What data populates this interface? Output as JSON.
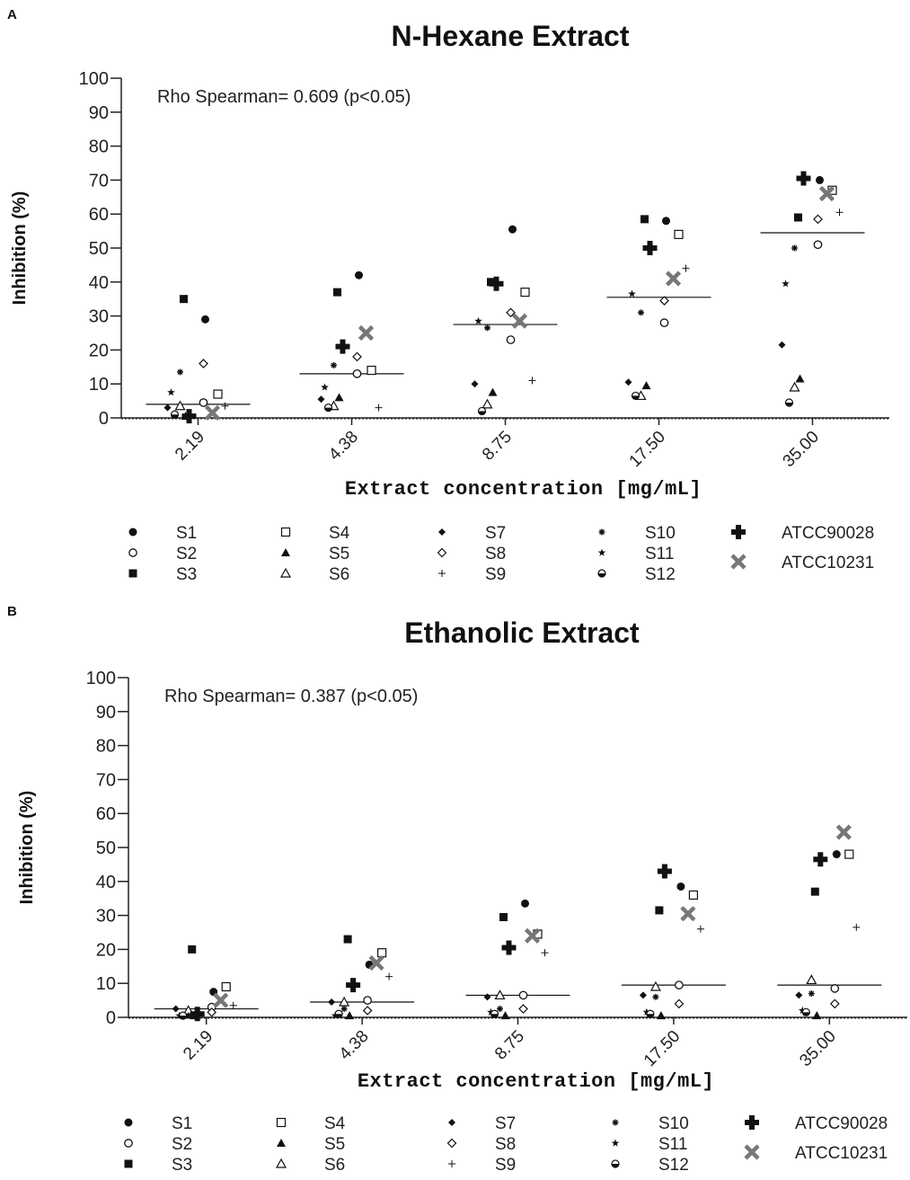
{
  "chart_data": [
    {
      "type": "scatter",
      "panel_label": "A",
      "title": "N-Hexane Extract",
      "annotation": "Rho Spearman= 0.609 (p<0.05)",
      "xlabel": "Extract concentration [mg/mL]",
      "ylabel": "Inhibition (%)",
      "ylim": [
        0,
        100
      ],
      "yticks": [
        "0",
        "10",
        "20",
        "30",
        "40",
        "50",
        "60",
        "70",
        "80",
        "90",
        "100"
      ],
      "categories": [
        "2.19",
        "4.38",
        "8.75",
        "17.50",
        "35.00"
      ],
      "medians": [
        4,
        13,
        27.5,
        35.5,
        54.5
      ],
      "legend_position": "bottom",
      "series": [
        {
          "name": "S1",
          "marker": "circle-filled",
          "values": [
            29,
            42,
            55.5,
            58,
            70
          ]
        },
        {
          "name": "S2",
          "marker": "circle-open",
          "values": [
            4.5,
            13,
            23,
            28,
            51
          ]
        },
        {
          "name": "S3",
          "marker": "square-filled",
          "values": [
            35,
            37,
            40,
            58.5,
            59
          ]
        },
        {
          "name": "S4",
          "marker": "square-open",
          "values": [
            7,
            14,
            37,
            54,
            67
          ]
        },
        {
          "name": "S5",
          "marker": "triangle-filled",
          "values": [
            0.5,
            6,
            7.5,
            9.5,
            11.5
          ]
        },
        {
          "name": "S6",
          "marker": "triangle-open",
          "values": [
            3.5,
            3.5,
            4,
            6.5,
            9
          ]
        },
        {
          "name": "S7",
          "marker": "diamond-filled",
          "values": [
            3,
            5.5,
            10,
            10.5,
            21.5
          ]
        },
        {
          "name": "S8",
          "marker": "diamond-open",
          "values": [
            16,
            18,
            31,
            34.5,
            58.5
          ]
        },
        {
          "name": "S9",
          "marker": "plus-thin",
          "values": [
            3.5,
            3,
            11,
            44,
            60.5
          ]
        },
        {
          "name": "S10",
          "marker": "asterisk",
          "values": [
            13.5,
            15.5,
            26.5,
            31,
            50
          ]
        },
        {
          "name": "S11",
          "marker": "star",
          "values": [
            7.5,
            9,
            28.5,
            36.5,
            39.5
          ]
        },
        {
          "name": "S12",
          "marker": "circle-half",
          "values": [
            1,
            3,
            2,
            6.5,
            4.5
          ]
        },
        {
          "name": "ATCC90028",
          "marker": "plus-bold",
          "values": [
            0.5,
            21,
            39.5,
            50,
            70.5
          ]
        },
        {
          "name": "ATCC10231",
          "marker": "x-gray",
          "values": [
            1.5,
            25,
            28.5,
            41,
            66
          ]
        }
      ]
    },
    {
      "type": "scatter",
      "panel_label": "B",
      "title": "Ethanolic Extract",
      "annotation": "Rho Spearman= 0.387 (p<0.05)",
      "xlabel": "Extract concentration [mg/mL]",
      "ylabel": "Inhibition (%)",
      "ylim": [
        0,
        100
      ],
      "yticks": [
        "0",
        "10",
        "20",
        "30",
        "40",
        "50",
        "60",
        "70",
        "80",
        "90",
        "100"
      ],
      "categories": [
        "2.19",
        "4.38",
        "8.75",
        "17.50",
        "35.00"
      ],
      "medians": [
        2.5,
        4.5,
        6.5,
        9.5,
        9.5
      ],
      "legend_position": "bottom",
      "series": [
        {
          "name": "S1",
          "marker": "circle-filled",
          "values": [
            7.5,
            15.5,
            33.5,
            38.5,
            48
          ]
        },
        {
          "name": "S2",
          "marker": "circle-open",
          "values": [
            3,
            5,
            6.5,
            9.5,
            8.5
          ]
        },
        {
          "name": "S3",
          "marker": "square-filled",
          "values": [
            20,
            23,
            29.5,
            31.5,
            37
          ]
        },
        {
          "name": "S4",
          "marker": "square-open",
          "values": [
            9,
            19,
            24.5,
            36,
            48
          ]
        },
        {
          "name": "S5",
          "marker": "triangle-filled",
          "values": [
            0.5,
            0.5,
            0.5,
            0.5,
            0.5
          ]
        },
        {
          "name": "S6",
          "marker": "triangle-open",
          "values": [
            2,
            4.5,
            6.5,
            9,
            11
          ]
        },
        {
          "name": "S7",
          "marker": "diamond-filled",
          "values": [
            2.5,
            4.5,
            6,
            6.5,
            6.5
          ]
        },
        {
          "name": "S8",
          "marker": "diamond-open",
          "values": [
            1.5,
            2,
            2.5,
            4,
            4
          ]
        },
        {
          "name": "S9",
          "marker": "plus-thin",
          "values": [
            3.5,
            12,
            19,
            26,
            26.5
          ]
        },
        {
          "name": "S10",
          "marker": "asterisk",
          "values": [
            0.5,
            2.5,
            2.5,
            6,
            7
          ]
        },
        {
          "name": "S11",
          "marker": "star",
          "values": [
            0.5,
            0.5,
            1.5,
            1.5,
            2
          ]
        },
        {
          "name": "S12",
          "marker": "circle-half",
          "values": [
            0.5,
            1,
            1,
            1,
            1.5
          ]
        },
        {
          "name": "ATCC90028",
          "marker": "plus-bold",
          "values": [
            1,
            9.5,
            20.5,
            43,
            46.5
          ]
        },
        {
          "name": "ATCC10231",
          "marker": "x-gray",
          "values": [
            5,
            16,
            24,
            30.5,
            54.5
          ]
        }
      ]
    }
  ]
}
